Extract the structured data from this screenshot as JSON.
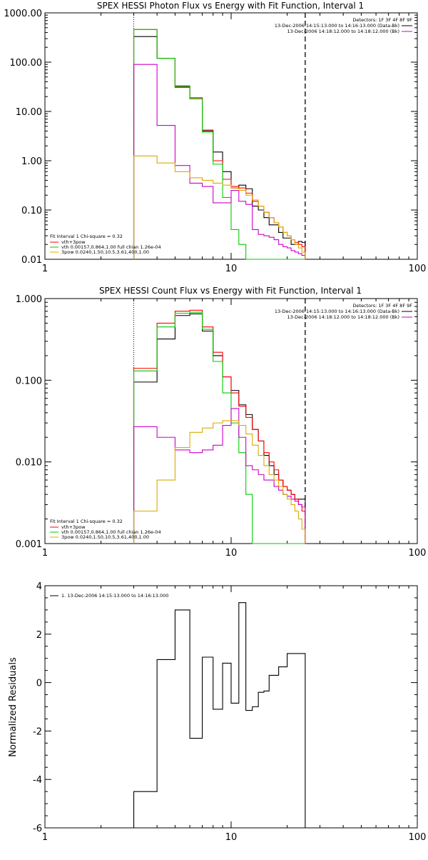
{
  "chart_data": [
    {
      "type": "line",
      "title": "SPEX HESSI Photon Flux vs Energy with Fit Function, Interval 1",
      "xlabel": "",
      "ylabel": "",
      "xscale": "log",
      "yscale": "log",
      "xlim": [
        1,
        100
      ],
      "ylim": [
        0.01,
        1000
      ],
      "xticks": [
        "1",
        "10",
        "100"
      ],
      "yticks": [
        "1000.00",
        "100.00",
        "10.00",
        "1.00",
        "0.10",
        "0.01"
      ],
      "vlines": [
        3.0,
        25.0
      ],
      "header": {
        "detectors": "Detectors: 1F 3F 4F 8F 9F",
        "interval_black": "13-Dec-2006 14:15:13.000 to 14:16:13.000 (Data-Bk)",
        "interval_magenta": "13-Dec-2006 14:18:12.000 to 14:18:12.000 (Bk)"
      },
      "legend": {
        "line1": "Fit Interval 1    Chi-square = 0.32",
        "entries": [
          {
            "label": "vth+3pow",
            "color": "#ff0000"
          },
          {
            "label": "vth 0.00157,0.864,1.00   full chian 1.26e-04",
            "color": "#00cc00"
          },
          {
            "label": "3pow 0.0240,1.50,10.5,3.61,400,1.00",
            "color": "#ddaa00"
          }
        ]
      },
      "edges": [
        3.0,
        4.0,
        5.0,
        6.0,
        7.0,
        8.0,
        9.0,
        10.0,
        11.0,
        12.0,
        13.0,
        14.0,
        15.0,
        16.0,
        17.0,
        18.0,
        19.0,
        20.0,
        21.0,
        22.0,
        23.0,
        24.0,
        25.0
      ],
      "series": [
        {
          "name": "Data-Bk",
          "color": "#000000",
          "values": [
            330,
            120,
            31,
            18,
            4.0,
            1.5,
            0.6,
            0.28,
            0.32,
            0.27,
            0.12,
            0.1,
            0.07,
            0.05,
            0.05,
            0.035,
            0.027,
            0.027,
            0.02,
            0.02,
            0.023,
            0.022
          ]
        },
        {
          "name": "vth+3pow",
          "color": "#ff0000",
          "values": [
            460,
            120,
            33,
            19,
            4.2,
            1.0,
            0.42,
            0.3,
            0.28,
            0.22,
            0.15,
            0.12,
            0.09,
            0.07,
            0.055,
            0.045,
            0.035,
            0.03,
            0.025,
            0.022,
            0.02,
            0.018
          ]
        },
        {
          "name": "vth",
          "color": "#00cc00",
          "values": [
            460,
            120,
            32,
            18,
            3.8,
            0.85,
            0.18,
            0.04,
            0.02,
            0.0095,
            0.0095,
            0.0095,
            0.0095,
            0.0095,
            0.0095,
            0.0095,
            0.0095,
            0.0095,
            0.0095,
            0.0095,
            0.0095,
            0.0095
          ]
        },
        {
          "name": "Bk",
          "color": "#cc00cc",
          "values": [
            90,
            5.2,
            0.8,
            0.35,
            0.3,
            0.14,
            0.14,
            0.25,
            0.15,
            0.13,
            0.04,
            0.032,
            0.03,
            0.028,
            0.025,
            0.02,
            0.018,
            0.017,
            0.015,
            0.014,
            0.013,
            0.012
          ]
        },
        {
          "name": "3pow",
          "color": "#ddaa00",
          "values": [
            1.25,
            0.9,
            0.6,
            0.45,
            0.4,
            0.35,
            0.32,
            0.28,
            0.25,
            0.2,
            0.16,
            0.12,
            0.09,
            0.07,
            0.055,
            0.045,
            0.035,
            0.03,
            0.025,
            0.02,
            0.017,
            0.014
          ]
        }
      ]
    },
    {
      "type": "line",
      "title": "SPEX HESSI Count Flux vs Energy with Fit Function, Interval 1",
      "xlabel": "",
      "ylabel": "",
      "xscale": "log",
      "yscale": "log",
      "xlim": [
        1,
        100
      ],
      "ylim": [
        0.001,
        1.0
      ],
      "xticks": [
        "1",
        "10",
        "100"
      ],
      "yticks": [
        "1.000",
        "0.100",
        "0.010",
        "0.001"
      ],
      "vlines": [
        3.0,
        25.0
      ],
      "header": {
        "detectors": "Detectors: 1F 3F 4F 8F 9F",
        "interval_black": "13-Dec-2006 14:15:13.000 to 14:16:13.000 (Data-Bk)",
        "interval_magenta": "13-Dec-2006 14:18:12.000 to 14:18:12.000 (Bk)"
      },
      "legend": {
        "line1": "Fit Interval 1    Chi-square = 0.32",
        "entries": [
          {
            "label": "vth+3pow",
            "color": "#ff0000"
          },
          {
            "label": "vth 0.00157,0.864,1.00   full chian 1.26e-04",
            "color": "#00cc00"
          },
          {
            "label": "3pow 0.0240,1.50,10.5,3.61,400,1.00",
            "color": "#ddaa00"
          }
        ]
      },
      "edges": [
        3.0,
        4.0,
        5.0,
        6.0,
        7.0,
        8.0,
        9.0,
        10.0,
        11.0,
        12.0,
        13.0,
        14.0,
        15.0,
        16.0,
        17.0,
        18.0,
        19.0,
        20.0,
        21.0,
        22.0,
        23.0,
        24.0,
        25.0
      ],
      "series": [
        {
          "name": "Data-Bk",
          "color": "#000000",
          "values": [
            0.095,
            0.32,
            0.62,
            0.65,
            0.4,
            0.2,
            0.11,
            0.075,
            0.05,
            0.038,
            0.025,
            0.018,
            0.012,
            0.009,
            0.007,
            0.006,
            0.005,
            0.0045,
            0.004,
            0.0035,
            0.0035,
            0.0035
          ]
        },
        {
          "name": "vth+3pow",
          "color": "#ff0000",
          "values": [
            0.14,
            0.5,
            0.7,
            0.72,
            0.45,
            0.22,
            0.11,
            0.07,
            0.048,
            0.035,
            0.025,
            0.018,
            0.013,
            0.01,
            0.008,
            0.006,
            0.005,
            0.0045,
            0.004,
            0.0035,
            0.003,
            0.0025
          ]
        },
        {
          "name": "vth",
          "color": "#00cc00",
          "values": [
            0.13,
            0.45,
            0.66,
            0.68,
            0.42,
            0.17,
            0.07,
            0.03,
            0.013,
            0.004,
            0.0009,
            0.0009,
            0.0009,
            0.0009,
            0.0009,
            0.0009,
            0.0009,
            0.0009,
            0.0009,
            0.0009,
            0.0009,
            0.0009
          ]
        },
        {
          "name": "Bk",
          "color": "#cc00cc",
          "values": [
            0.027,
            0.02,
            0.014,
            0.013,
            0.014,
            0.016,
            0.028,
            0.045,
            0.02,
            0.009,
            0.008,
            0.007,
            0.006,
            0.006,
            0.005,
            0.0045,
            0.004,
            0.0038,
            0.0035,
            0.0033,
            0.003,
            0.0028
          ]
        },
        {
          "name": "3pow",
          "color": "#ddaa00",
          "values": [
            0.0025,
            0.006,
            0.015,
            0.023,
            0.026,
            0.03,
            0.032,
            0.032,
            0.028,
            0.022,
            0.016,
            0.012,
            0.009,
            0.007,
            0.006,
            0.005,
            0.004,
            0.0035,
            0.003,
            0.0025,
            0.002,
            0.0015
          ]
        }
      ]
    },
    {
      "type": "line",
      "title": "",
      "xlabel": "",
      "ylabel": "Normalized Residuals",
      "xscale": "log",
      "yscale": "linear",
      "xlim": [
        1,
        100
      ],
      "ylim": [
        -6,
        4
      ],
      "xticks": [
        "1",
        "10",
        "100"
      ],
      "yticks": [
        "4",
        "2",
        "0",
        "-2",
        "-4",
        "-6"
      ],
      "legend": {
        "entries": [
          {
            "label": "1. 13-Dec-2006 14:15:13.000 to 14:16:13.000",
            "color": "#000000"
          }
        ]
      },
      "edges": [
        3.0,
        4.0,
        5.0,
        6.0,
        7.0,
        8.0,
        9.0,
        10.0,
        11.0,
        12.0,
        13.0,
        14.0,
        15.0,
        16.0,
        17.0,
        18.0,
        19.0,
        20.0,
        21.0,
        22.0,
        23.0,
        24.0,
        25.0
      ],
      "series": [
        {
          "name": "residuals",
          "color": "#000000",
          "values": [
            -4.5,
            0.95,
            3.0,
            -2.3,
            1.05,
            -1.1,
            0.8,
            -0.85,
            3.3,
            -1.15,
            -1.0,
            -0.4,
            -0.35,
            0.3,
            0.3,
            0.65,
            0.65,
            1.2,
            1.2,
            1.2,
            1.2,
            1.2
          ]
        }
      ]
    }
  ]
}
